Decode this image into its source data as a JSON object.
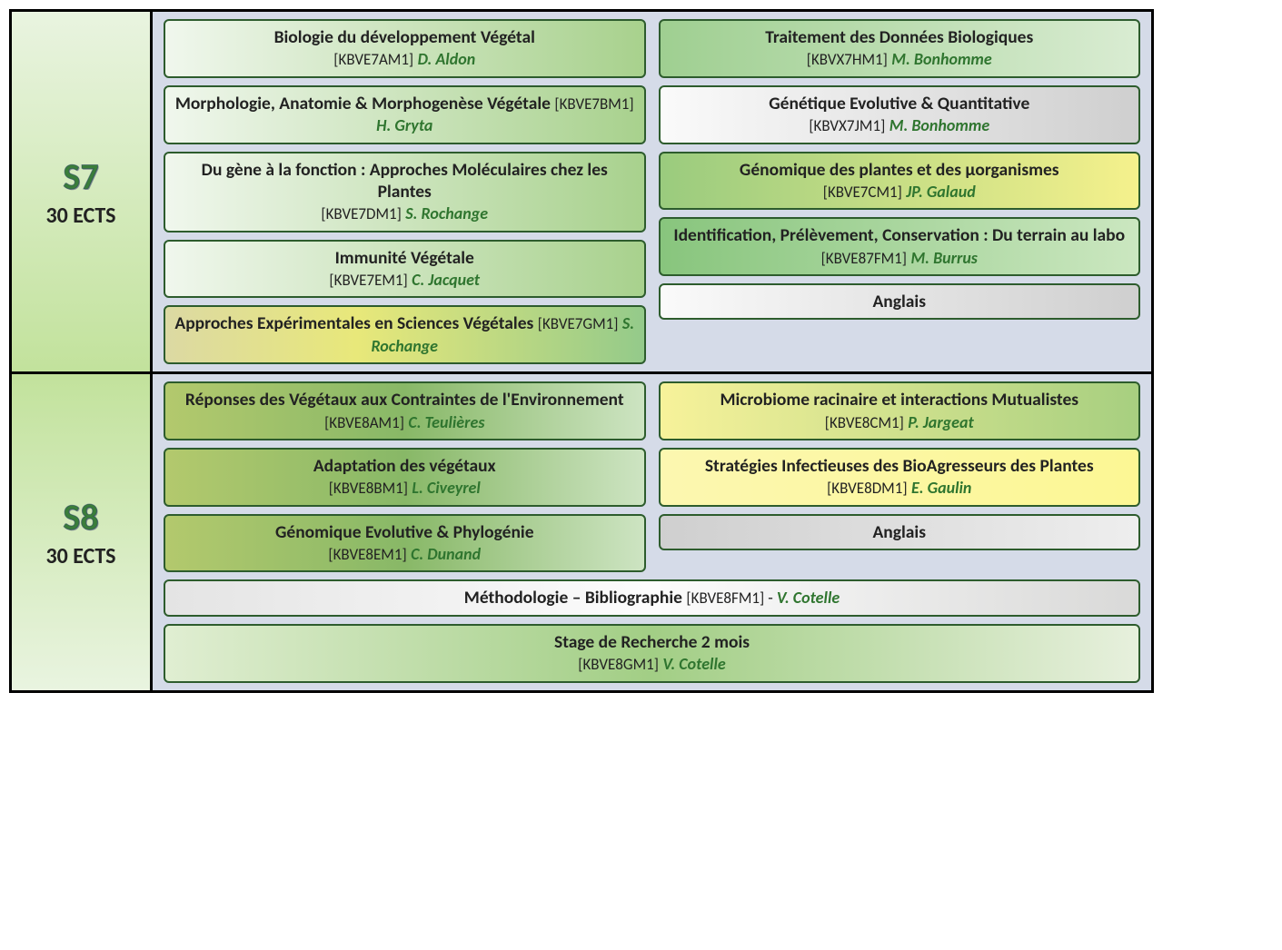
{
  "semesters": [
    {
      "code": "S7",
      "ects": "30 ECTS",
      "sidebar_bg": "sidebar-s7",
      "left": [
        {
          "title": "Biologie du développement Végétal",
          "code": "[KBVE7AM1]",
          "instructor": "D. Aldon",
          "bg": "bg-lightgreen"
        },
        {
          "title": "Morphologie, Anatomie & Morphogenèse Végétale",
          "code": "[KBVE7BM1]",
          "instructor": "H. Gryta",
          "bg": "bg-lightgreen",
          "inline": true
        },
        {
          "title": "Du gène à la fonction : Approches Moléculaires chez les Plantes",
          "code": "[KBVE7DM1]",
          "instructor": "S. Rochange",
          "bg": "bg-lightgreen"
        },
        {
          "title": "Immunité Végétale",
          "code": "[KBVE7EM1]",
          "instructor": "C. Jacquet",
          "bg": "bg-lightgreen"
        },
        {
          "title": "Approches Expérimentales en Sciences Végétales",
          "code": "[KBVE7GM1]",
          "instructor": "S. Rochange",
          "bg": "bg-yellowmix",
          "inline": true
        }
      ],
      "right": [
        {
          "title": "Traitement des Données Biologiques",
          "code": "[KBVX7HM1]",
          "instructor": "M. Bonhomme",
          "bg": "bg-greenfade"
        },
        {
          "title": "Génétique Evolutive & Quantitative",
          "code": "[KBVX7JM1]",
          "instructor": "M. Bonhomme",
          "bg": "bg-grey"
        },
        {
          "title": "Génomique des plantes et des μorganismes",
          "code": "[KBVE7CM1]",
          "instructor": "JP. Galaud",
          "bg": "bg-greenyel"
        },
        {
          "title": "Identification, Prélèvement, Conservation : Du terrain au labo",
          "code": "[KBVE87FM1]",
          "instructor": "M. Burrus",
          "bg": "bg-midgreen"
        },
        {
          "title": "Anglais",
          "bg": "bg-grey",
          "simple": true
        }
      ],
      "full": []
    },
    {
      "code": "S8",
      "ects": "30 ECTS",
      "sidebar_bg": "sidebar-s8",
      "left": [
        {
          "title": "Réponses des Végétaux aux Contraintes de l'Environnement",
          "code": "[KBVE8AM1]",
          "instructor": "C. Teulières",
          "bg": "bg-olive"
        },
        {
          "title": "Adaptation des  végétaux",
          "code": "[KBVE8BM1]",
          "instructor": "L. Civeyrel",
          "bg": "bg-olive"
        },
        {
          "title": "Génomique Evolutive & Phylogénie",
          "code": "[KBVE8EM1]",
          "instructor": "C. Dunand",
          "bg": "bg-olive"
        }
      ],
      "right": [
        {
          "title": "Microbiome racinaire et interactions Mutualistes",
          "code": "[KBVE8CM1]",
          "instructor": "P. Jargeat",
          "bg": "bg-yellowgrn"
        },
        {
          "title": "Stratégies Infectieuses des BioAgresseurs des Plantes",
          "code": "[KBVE8DM1]",
          "instructor": "E. Gaulin",
          "bg": "bg-yellow"
        },
        {
          "title": "Anglais",
          "bg": "bg-greyflat",
          "simple": true
        }
      ],
      "full": [
        {
          "title": "Méthodologie – Bibliographie",
          "code": "[KBVE8FM1]",
          "sep": " - ",
          "instructor": "V. Cotelle",
          "bg": "bg-wide1",
          "inline": true
        },
        {
          "title": "Stage de Recherche 2 mois",
          "code": "[KBVE8GM1]",
          "instructor": "V. Cotelle",
          "bg": "bg-wide2"
        }
      ]
    }
  ]
}
